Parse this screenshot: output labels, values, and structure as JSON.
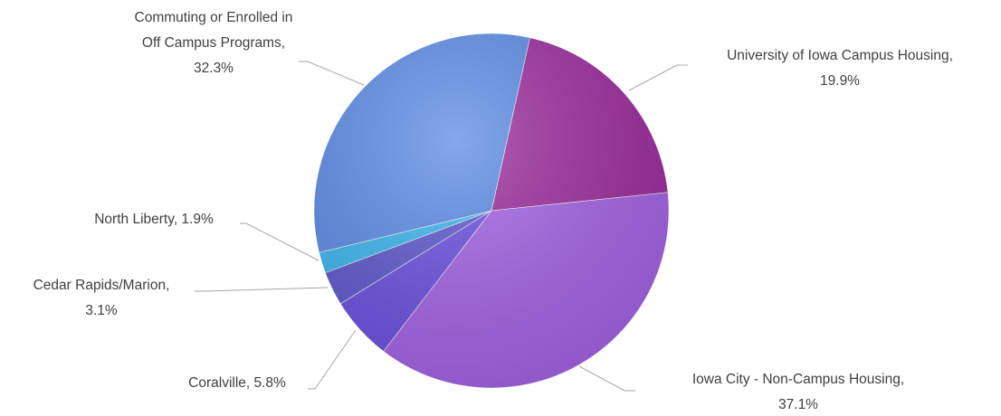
{
  "chart_data": {
    "type": "pie",
    "labels": [
      [
        "University of Iowa Campus Housing,",
        "19.9%"
      ],
      [
        "Iowa City - Non-Campus Housing,",
        "37.1%"
      ],
      [
        "Coralville, 5.8%"
      ],
      [
        "Cedar Rapids/Marion,",
        "3.1%"
      ],
      [
        "North Liberty, 1.9%"
      ],
      [
        "Commuting or Enrolled in",
        "Off Campus Programs,",
        "32.3%"
      ]
    ],
    "values": [
      19.9,
      37.1,
      5.8,
      3.1,
      1.9,
      32.3
    ],
    "colors": [
      "#9c2a9e",
      "#a462e6",
      "#6a50e2",
      "#5d58cf",
      "#3ab6ef",
      "#5a8ae6"
    ]
  }
}
